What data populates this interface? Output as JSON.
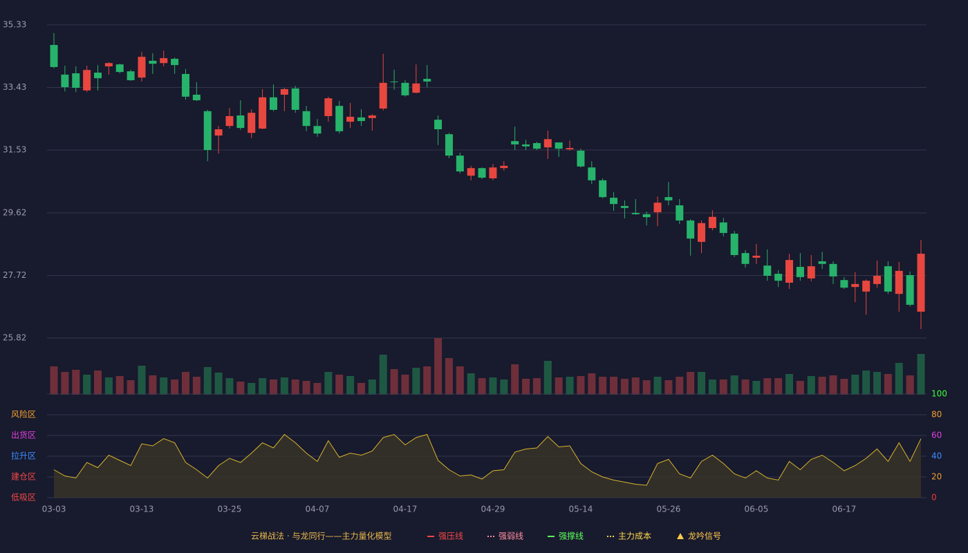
{
  "chart_data": [
    {
      "type": "candlestick",
      "categories": [
        "03-03",
        null,
        null,
        null,
        null,
        null,
        null,
        null,
        "03-13",
        null,
        null,
        null,
        null,
        null,
        null,
        null,
        "03-25",
        null,
        null,
        null,
        null,
        null,
        null,
        null,
        "04-07",
        null,
        null,
        null,
        null,
        null,
        null,
        null,
        "04-17",
        null,
        null,
        null,
        null,
        null,
        null,
        null,
        "04-29",
        null,
        null,
        null,
        null,
        null,
        null,
        null,
        "05-14",
        null,
        null,
        null,
        null,
        null,
        null,
        null,
        "05-26",
        null,
        null,
        null,
        null,
        null,
        null,
        null,
        "06-05",
        null,
        null,
        null,
        null,
        null,
        null,
        null,
        "06-17",
        null,
        null,
        null,
        null,
        null,
        null,
        null
      ],
      "open": [
        34.72,
        33.82,
        33.86,
        33.34,
        33.88,
        34.07,
        34.13,
        33.92,
        33.73,
        34.24,
        34.17,
        34.3,
        33.84,
        33.21,
        32.71,
        31.97,
        32.26,
        32.58,
        32.05,
        32.18,
        33.13,
        33.21,
        33.4,
        32.71,
        32.26,
        32.56,
        32.87,
        32.39,
        32.52,
        32.5,
        32.79,
        33.61,
        33.57,
        33.27,
        33.69,
        32.45,
        32.01,
        31.36,
        30.75,
        30.98,
        30.67,
        30.98,
        31.8,
        31.7,
        31.74,
        31.61,
        31.76,
        31.55,
        31.51,
        31.0,
        30.61,
        30.08,
        29.83,
        29.62,
        29.58,
        29.64,
        30.1,
        29.85,
        29.39,
        28.74,
        29.16,
        29.33,
        28.99,
        28.4,
        28.26,
        28.02,
        27.77,
        27.5,
        27.98,
        27.63,
        28.15,
        28.07,
        27.58,
        27.37,
        27.23,
        27.46,
        28.0,
        27.16,
        27.73,
        26.62
      ],
      "high": [
        35.08,
        34.09,
        34.07,
        34.09,
        34.11,
        34.2,
        34.15,
        33.97,
        34.51,
        34.47,
        34.55,
        34.34,
        33.99,
        33.59,
        32.75,
        32.26,
        32.81,
        33.04,
        32.77,
        33.38,
        33.52,
        33.42,
        33.48,
        32.87,
        32.47,
        33.15,
        33.02,
        32.96,
        32.77,
        32.62,
        34.45,
        33.97,
        33.65,
        34.13,
        34.11,
        32.58,
        32.05,
        31.45,
        31.05,
        31.0,
        31.11,
        31.19,
        32.24,
        31.84,
        31.78,
        32.12,
        31.76,
        31.82,
        31.57,
        31.19,
        30.67,
        30.25,
        30.0,
        30.04,
        29.66,
        30.12,
        30.56,
        30.04,
        29.43,
        29.39,
        29.7,
        29.47,
        29.07,
        28.49,
        28.68,
        28.51,
        27.88,
        28.38,
        28.4,
        28.34,
        28.44,
        28.15,
        27.67,
        27.82,
        27.6,
        28.17,
        28.15,
        28.13,
        27.84,
        28.8
      ],
      "low": [
        34.01,
        33.31,
        33.29,
        33.29,
        33.34,
        33.82,
        33.86,
        33.63,
        33.61,
        33.84,
        34.07,
        33.84,
        33.06,
        33.02,
        31.19,
        31.42,
        32.18,
        32.14,
        31.89,
        32.16,
        32.71,
        32.71,
        32.66,
        32.1,
        31.93,
        32.39,
        32.03,
        32.2,
        32.26,
        32.12,
        32.73,
        33.36,
        33.15,
        33.25,
        33.44,
        31.68,
        31.28,
        30.82,
        30.61,
        30.65,
        30.61,
        30.9,
        31.53,
        31.53,
        31.53,
        31.26,
        31.32,
        31.51,
        31.0,
        30.5,
        30.06,
        29.68,
        29.45,
        29.56,
        29.24,
        29.22,
        29.85,
        29.28,
        28.32,
        28.4,
        29.09,
        28.91,
        28.28,
        27.96,
        28.07,
        27.56,
        27.37,
        27.31,
        27.56,
        27.54,
        27.92,
        27.46,
        27.31,
        26.91,
        26.53,
        27.35,
        27.16,
        26.62,
        26.78,
        26.09
      ],
      "close": [
        34.05,
        33.44,
        33.42,
        33.96,
        33.71,
        34.17,
        33.9,
        33.65,
        34.36,
        34.15,
        34.32,
        34.11,
        33.15,
        33.04,
        31.53,
        32.16,
        32.56,
        32.2,
        32.66,
        33.13,
        32.75,
        33.38,
        32.75,
        32.26,
        32.03,
        33.1,
        32.1,
        32.54,
        32.41,
        32.58,
        33.57,
        33.59,
        33.19,
        33.55,
        33.61,
        32.16,
        31.36,
        30.88,
        30.98,
        30.69,
        31.0,
        31.05,
        31.7,
        31.64,
        31.57,
        31.86,
        31.57,
        31.59,
        31.03,
        30.61,
        30.1,
        29.89,
        29.77,
        29.58,
        29.49,
        29.93,
        30.0,
        29.39,
        28.84,
        29.31,
        29.5,
        29.01,
        28.34,
        28.07,
        28.32,
        27.71,
        27.56,
        28.19,
        27.67,
        28.0,
        28.07,
        27.69,
        27.35,
        27.46,
        27.56,
        27.71,
        27.23,
        27.86,
        26.83,
        28.38
      ],
      "up_color": "#e8473f",
      "down_color": "#27b36b",
      "ylim": [
        25.82,
        35.33
      ],
      "yticks": [
        35.33,
        33.43,
        31.53,
        29.62,
        27.72,
        25.82
      ],
      "grid": true
    },
    {
      "type": "bar",
      "values": [
        41,
        33,
        36,
        29,
        35,
        25,
        27,
        21,
        42,
        28,
        25,
        22,
        33,
        26,
        40,
        32,
        24,
        19,
        17,
        24,
        22,
        25,
        22,
        20,
        17,
        33,
        29,
        27,
        17,
        22,
        58,
        37,
        29,
        39,
        41,
        82,
        53,
        41,
        31,
        24,
        25,
        22,
        44,
        23,
        24,
        49,
        25,
        26,
        27,
        31,
        26,
        26,
        23,
        25,
        21,
        26,
        21,
        26,
        33,
        33,
        22,
        22,
        28,
        22,
        20,
        24,
        24,
        30,
        20,
        27,
        26,
        28,
        23,
        29,
        35,
        33,
        30,
        46,
        28,
        59
      ],
      "colors": [
        "#6e2f3a",
        "#6e2f3a",
        "#6e2f3a",
        "#1e5843",
        "#6e2f3a",
        "#1e5843",
        "#6e2f3a",
        "#6e2f3a",
        "#1e5843",
        "#6e2f3a",
        "#1e5843",
        "#6e2f3a",
        "#6e2f3a",
        "#6e2f3a",
        "#1e5843",
        "#1e5843",
        "#1e5843",
        "#6e2f3a",
        "#1e5843",
        "#1e5843",
        "#6e2f3a",
        "#1e5843",
        "#6e2f3a",
        "#6e2f3a",
        "#6e2f3a",
        "#1e5843",
        "#6e2f3a",
        "#1e5843",
        "#6e2f3a",
        "#1e5843",
        "#1e5843",
        "#6e2f3a",
        "#6e2f3a",
        "#1e5843",
        "#6e2f3a",
        "#6e2f3a",
        "#6e2f3a",
        "#6e2f3a",
        "#1e5843",
        "#6e2f3a",
        "#1e5843",
        "#1e5843",
        "#6e2f3a",
        "#6e2f3a",
        "#6e2f3a",
        "#1e5843",
        "#6e2f3a",
        "#1e5843",
        "#6e2f3a",
        "#6e2f3a",
        "#6e2f3a",
        "#6e2f3a",
        "#6e2f3a",
        "#6e2f3a",
        "#6e2f3a",
        "#1e5843",
        "#6e2f3a",
        "#6e2f3a",
        "#6e2f3a",
        "#1e5843",
        "#1e5843",
        "#6e2f3a",
        "#1e5843",
        "#6e2f3a",
        "#1e5843",
        "#6e2f3a",
        "#6e2f3a",
        "#1e5843",
        "#6e2f3a",
        "#1e5843",
        "#6e2f3a",
        "#6e2f3a",
        "#6e2f3a",
        "#1e5843",
        "#1e5843",
        "#1e5843",
        "#6e2f3a",
        "#1e5843",
        "#6e2f3a",
        "#1e5843"
      ]
    },
    {
      "type": "area",
      "values": [
        27,
        21,
        19,
        34,
        29,
        41,
        36,
        31,
        52,
        50,
        57,
        53,
        34,
        27,
        19,
        31,
        38,
        34,
        43,
        53,
        48,
        61,
        53,
        43,
        35,
        55,
        39,
        43,
        41,
        45,
        58,
        61,
        51,
        58,
        61,
        36,
        27,
        21,
        22,
        18,
        26,
        27,
        44,
        47,
        48,
        59,
        49,
        50,
        33,
        25,
        20,
        17,
        15,
        13,
        12,
        33,
        37,
        23,
        19,
        35,
        41,
        33,
        23,
        19,
        26,
        19,
        17,
        35,
        27,
        37,
        41,
        34,
        26,
        31,
        38,
        47,
        35,
        53,
        35,
        57
      ],
      "color": "#d9b52c",
      "fill": "#3a3428",
      "ylim": [
        0,
        100
      ],
      "yticks": [
        100,
        80,
        60,
        40,
        20,
        0
      ],
      "ytick_colors": [
        "#3cff3c",
        "#f0a030",
        "#e040e0",
        "#3c8cff",
        "#f0a030",
        "#f03c3c"
      ],
      "zones": [
        {
          "label": "风险区",
          "value": 80,
          "color": "#f0a030"
        },
        {
          "label": "出货区",
          "value": 60,
          "color": "#e040e0"
        },
        {
          "label": "拉升区",
          "value": 40,
          "color": "#3c8cff"
        },
        {
          "label": "建仓区",
          "value": 20,
          "color": "#f04848"
        },
        {
          "label": "低吸区",
          "value": 0,
          "color": "#f04848"
        }
      ],
      "grid": true
    }
  ],
  "legend": {
    "title": "云梯战法 · 与龙同行——主力量化模型",
    "title_color": "#e8b84a",
    "items": [
      {
        "label": "强压线",
        "color": "#f04848",
        "style": "solid"
      },
      {
        "label": "强弱线",
        "color": "#ff8fa0",
        "style": "dashed"
      },
      {
        "label": "强撑线",
        "color": "#5dff5d",
        "style": "solid"
      },
      {
        "label": "主力成本",
        "color": "#ffd84a",
        "style": "dashed"
      },
      {
        "label": "龙吟信号",
        "color": "#ffc94a",
        "style": "triangle"
      }
    ]
  }
}
